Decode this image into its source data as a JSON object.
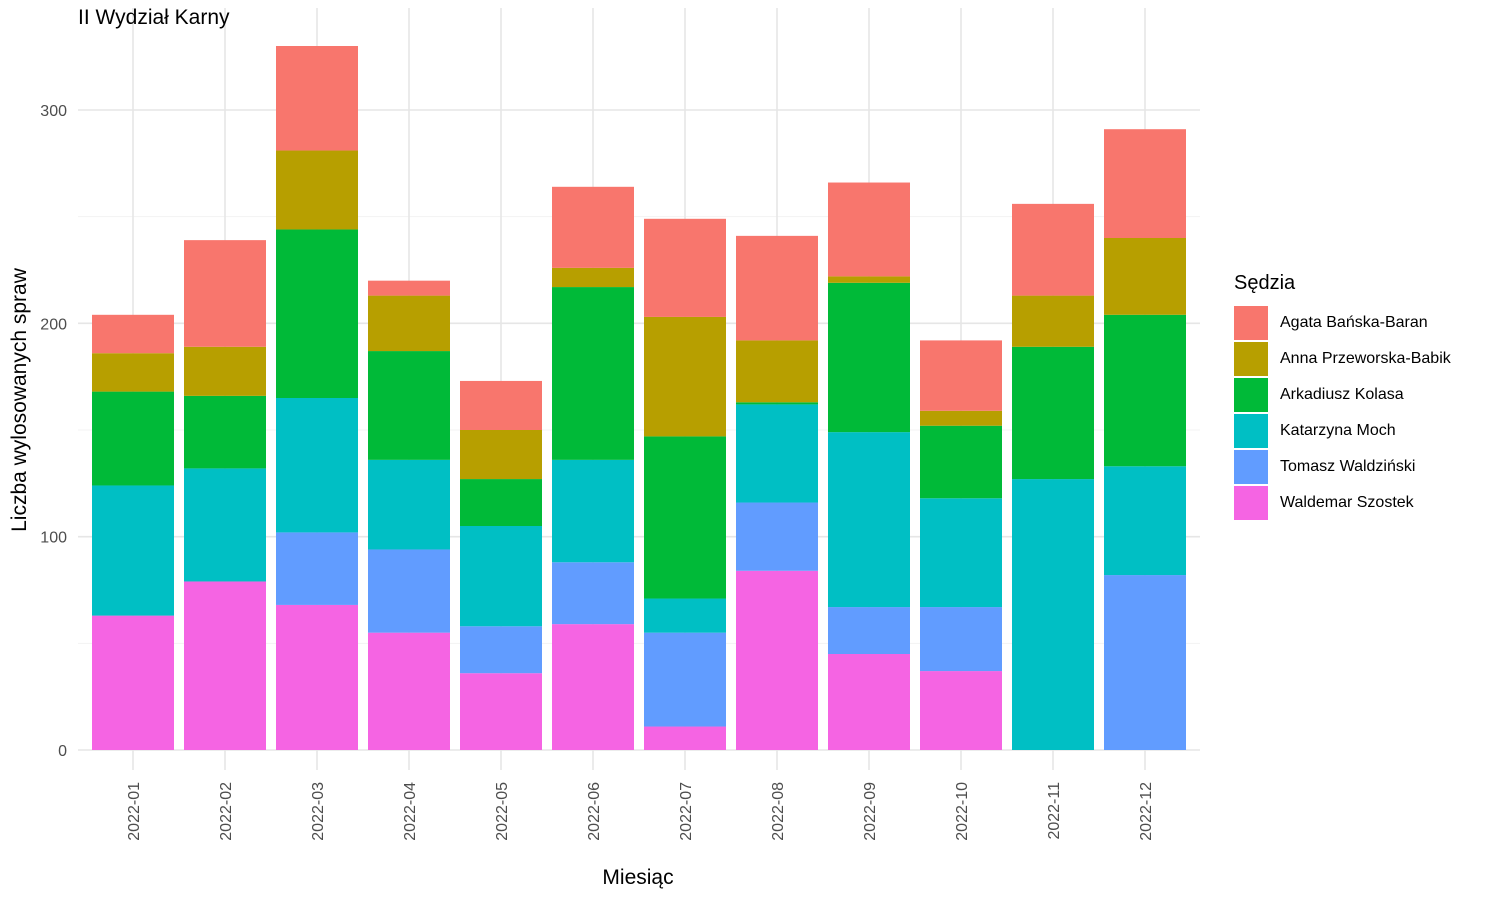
{
  "chart_data": {
    "type": "bar",
    "stacked": true,
    "title": "II Wydział Karny",
    "xlabel": "Miesiąc",
    "ylabel": "Liczba wylosowanych spraw",
    "ylim": [
      0,
      330
    ],
    "yticks": [
      0,
      100,
      200,
      300
    ],
    "grid": true,
    "legend_position": "right",
    "legend_title": "Sędzia",
    "categories": [
      "2022-01",
      "2022-02",
      "2022-03",
      "2022-04",
      "2022-05",
      "2022-06",
      "2022-07",
      "2022-08",
      "2022-09",
      "2022-10",
      "2022-11",
      "2022-12"
    ],
    "series": [
      {
        "name": "Waldemar Szostek",
        "color": "#F564E3",
        "values": [
          63,
          79,
          68,
          55,
          36,
          59,
          11,
          84,
          45,
          37,
          0,
          0
        ]
      },
      {
        "name": "Tomasz Waldziński",
        "color": "#619CFF",
        "values": [
          0,
          0,
          34,
          39,
          22,
          29,
          44,
          32,
          22,
          30,
          0,
          82
        ]
      },
      {
        "name": "Katarzyna Moch",
        "color": "#00BFC4",
        "values": [
          61,
          53,
          63,
          42,
          47,
          48,
          16,
          46,
          82,
          51,
          127,
          51
        ]
      },
      {
        "name": "Arkadiusz Kolasa",
        "color": "#00BA38",
        "values": [
          44,
          34,
          79,
          51,
          22,
          81,
          76,
          1,
          70,
          34,
          62,
          71
        ]
      },
      {
        "name": "Anna Przeworska-Babik",
        "color": "#B79F00",
        "values": [
          18,
          23,
          37,
          26,
          23,
          9,
          56,
          29,
          3,
          7,
          24,
          36
        ]
      },
      {
        "name": "Agata Bańska-Baran",
        "color": "#F8766D",
        "values": [
          18,
          50,
          49,
          7,
          23,
          38,
          46,
          49,
          44,
          33,
          43,
          51
        ]
      }
    ],
    "legend_order": [
      "Agata Bańska-Baran",
      "Anna Przeworska-Babik",
      "Arkadiusz Kolasa",
      "Katarzyna Moch",
      "Tomasz Waldziński",
      "Waldemar Szostek"
    ]
  }
}
